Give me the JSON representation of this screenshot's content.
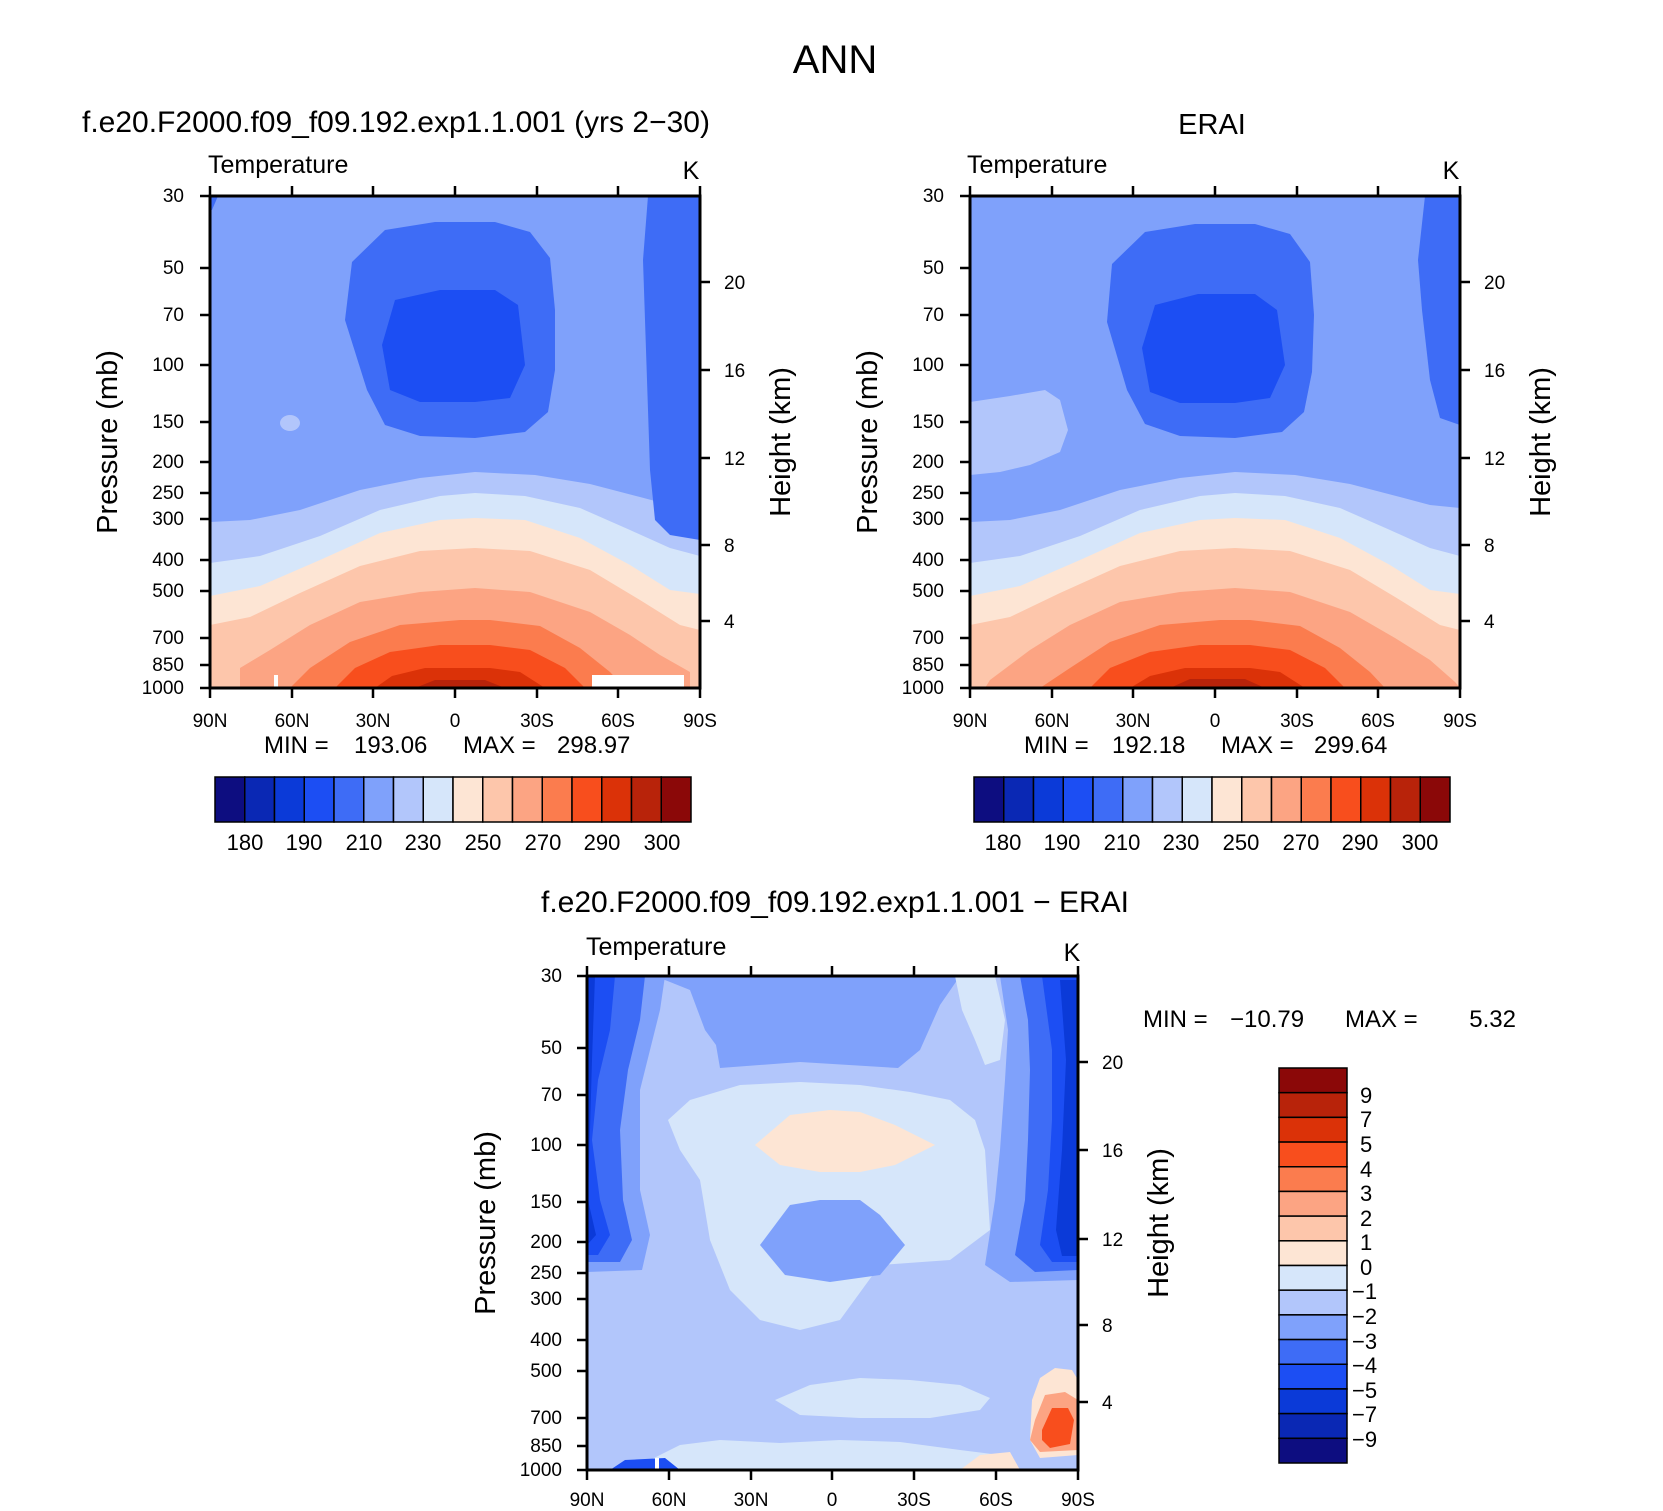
{
  "page": {
    "title": "ANN"
  },
  "colors": {
    "abs_palette": [
      "#0d0d80",
      "#0a28b4",
      "#0b3ad8",
      "#1c4ef3",
      "#3e6cf6",
      "#7fa1fb",
      "#b2c6fb",
      "#d6e6fa",
      "#fde5d4",
      "#fdc6ab",
      "#fca483",
      "#fb7c4e",
      "#f84e1d",
      "#db3208",
      "#b8230a",
      "#8b0808"
    ],
    "diff_palette": [
      "#0d0d80",
      "#0a28b4",
      "#0b3ad8",
      "#1c4ef3",
      "#3e6cf6",
      "#7fa1fb",
      "#b2c6fb",
      "#d6e6fa",
      "#fde5d4",
      "#fdc6ab",
      "#fca483",
      "#fb7c4e",
      "#f84e1d",
      "#db3208",
      "#b8230a",
      "#8b0808"
    ]
  },
  "chart_data": [
    {
      "id": "model",
      "type": "heatmap",
      "subtitle": "f.e20.F2000.f09_f09.192.exp1.1.001 (yrs 2-30)",
      "variable": "Temperature",
      "units": "K",
      "ylabel": "Pressure (mb)",
      "y2label": "Height (km)",
      "xlabel": "",
      "x_ticks": [
        "90N",
        "60N",
        "30N",
        "0",
        "30S",
        "60S",
        "90S"
      ],
      "y_ticks": [
        "30",
        "50",
        "70",
        "100",
        "150",
        "200",
        "250",
        "300",
        "400",
        "500",
        "700",
        "850",
        "1000"
      ],
      "y2_ticks": [
        "20",
        "16",
        "12",
        "8",
        "4"
      ],
      "stats": {
        "min_label": "MIN =",
        "min": "193.06",
        "max_label": "MAX =",
        "max": "298.97"
      },
      "colorbar_levels": [
        "180",
        "190",
        "210",
        "230",
        "250",
        "270",
        "290",
        "300"
      ],
      "ylim": [
        1000,
        30
      ],
      "xlim": [
        90,
        -90
      ]
    },
    {
      "id": "obs",
      "type": "heatmap",
      "subtitle": "ERAI",
      "variable": "Temperature",
      "units": "K",
      "ylabel": "Pressure (mb)",
      "y2label": "Height (km)",
      "xlabel": "",
      "x_ticks": [
        "90N",
        "60N",
        "30N",
        "0",
        "30S",
        "60S",
        "90S"
      ],
      "y_ticks": [
        "30",
        "50",
        "70",
        "100",
        "150",
        "200",
        "250",
        "300",
        "400",
        "500",
        "700",
        "850",
        "1000"
      ],
      "y2_ticks": [
        "20",
        "16",
        "12",
        "8",
        "4"
      ],
      "stats": {
        "min_label": "MIN =",
        "min": "192.18",
        "max_label": "MAX =",
        "max": "299.64"
      },
      "colorbar_levels": [
        "180",
        "190",
        "210",
        "230",
        "250",
        "270",
        "290",
        "300"
      ],
      "ylim": [
        1000,
        30
      ],
      "xlim": [
        90,
        -90
      ]
    },
    {
      "id": "diff",
      "type": "heatmap",
      "subtitle": "f.e20.F2000.f09_f09.192.exp1.1.001 - ERAI",
      "variable": "Temperature",
      "units": "K",
      "ylabel": "Pressure (mb)",
      "y2label": "Height (km)",
      "xlabel": "",
      "x_ticks": [
        "90N",
        "60N",
        "30N",
        "0",
        "30S",
        "60S",
        "90S"
      ],
      "y_ticks": [
        "30",
        "50",
        "70",
        "100",
        "150",
        "200",
        "250",
        "300",
        "400",
        "500",
        "700",
        "850",
        "1000"
      ],
      "y2_ticks": [
        "20",
        "16",
        "12",
        "8",
        "4"
      ],
      "stats": {
        "min_label": "MIN =",
        "min": "-10.79",
        "max_label": "MAX =",
        "max": "5.32"
      },
      "colorbar_levels": [
        "9",
        "7",
        "5",
        "4",
        "3",
        "2",
        "1",
        "0",
        "-1",
        "-2",
        "-3",
        "-4",
        "-5",
        "-7",
        "-9"
      ],
      "ylim": [
        1000,
        30
      ],
      "xlim": [
        90,
        -90
      ]
    }
  ]
}
